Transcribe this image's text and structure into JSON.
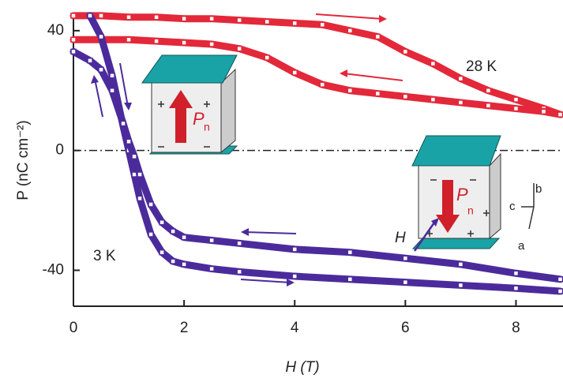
{
  "chart_data": {
    "type": "line",
    "x_label": "H (T)",
    "y_label": "P (nC cm⁻²)",
    "annotations": [
      "28 K",
      "3 K"
    ],
    "inset_labels": {
      "p": "P",
      "n": "n",
      "h": "H",
      "a": "a",
      "b": "b",
      "c": "c"
    },
    "xlim": [
      0,
      8.85
    ],
    "ylim": [
      -52,
      45.5
    ],
    "xticks": [
      0,
      2,
      4,
      6,
      8
    ],
    "yticks": [
      -40,
      0,
      40
    ],
    "series": [
      {
        "color": "#e3283a",
        "x": [
          0,
          0.5,
          1,
          1.5,
          2,
          2.5,
          3,
          3.5,
          4,
          4.5,
          5,
          5.5,
          6,
          6.5,
          7,
          7.5,
          8,
          8.5,
          8.8
        ],
        "values": [
          45,
          45,
          44.5,
          44.5,
          44,
          44,
          43.5,
          43,
          42.5,
          42,
          40,
          38,
          33,
          29,
          24,
          20,
          17,
          14,
          12
        ]
      },
      {
        "color": "#e3283a",
        "x": [
          8.8,
          8.5,
          8,
          7.5,
          7,
          6.5,
          6,
          5.5,
          5,
          4.5,
          4,
          3.5,
          3,
          2.5,
          2,
          1.5,
          1,
          0.5,
          0
        ],
        "values": [
          12,
          13,
          14,
          15,
          16,
          17,
          18,
          19,
          20,
          22,
          26,
          31,
          34,
          35.5,
          36,
          36.5,
          37,
          37,
          37
        ]
      },
      {
        "color": "#4b2b9c",
        "x": [
          0.3,
          0.5,
          0.7,
          0.9,
          1.0,
          1.1,
          1.2,
          1.4,
          1.6,
          1.8,
          2,
          2.5,
          3,
          4,
          5,
          6,
          7,
          8,
          8.8
        ],
        "values": [
          45,
          38,
          25,
          8,
          0,
          -8,
          -16,
          -28,
          -34,
          -37,
          -38,
          -39.5,
          -40.5,
          -42,
          -43,
          -44,
          -45,
          -46,
          -47
        ]
      },
      {
        "color": "#4b2b9c",
        "x": [
          8.8,
          8,
          7,
          6,
          5,
          4,
          3,
          2.5,
          2,
          1.8,
          1.6,
          1.4,
          1.2,
          1.1,
          1.0,
          0.9,
          0.7,
          0.5,
          0.3,
          0
        ],
        "values": [
          -43,
          -41,
          -38,
          -36,
          -34,
          -33,
          -31,
          -30,
          -29,
          -27,
          -24,
          -18,
          -8,
          -2,
          3,
          9,
          20,
          27,
          30,
          33
        ]
      }
    ]
  }
}
